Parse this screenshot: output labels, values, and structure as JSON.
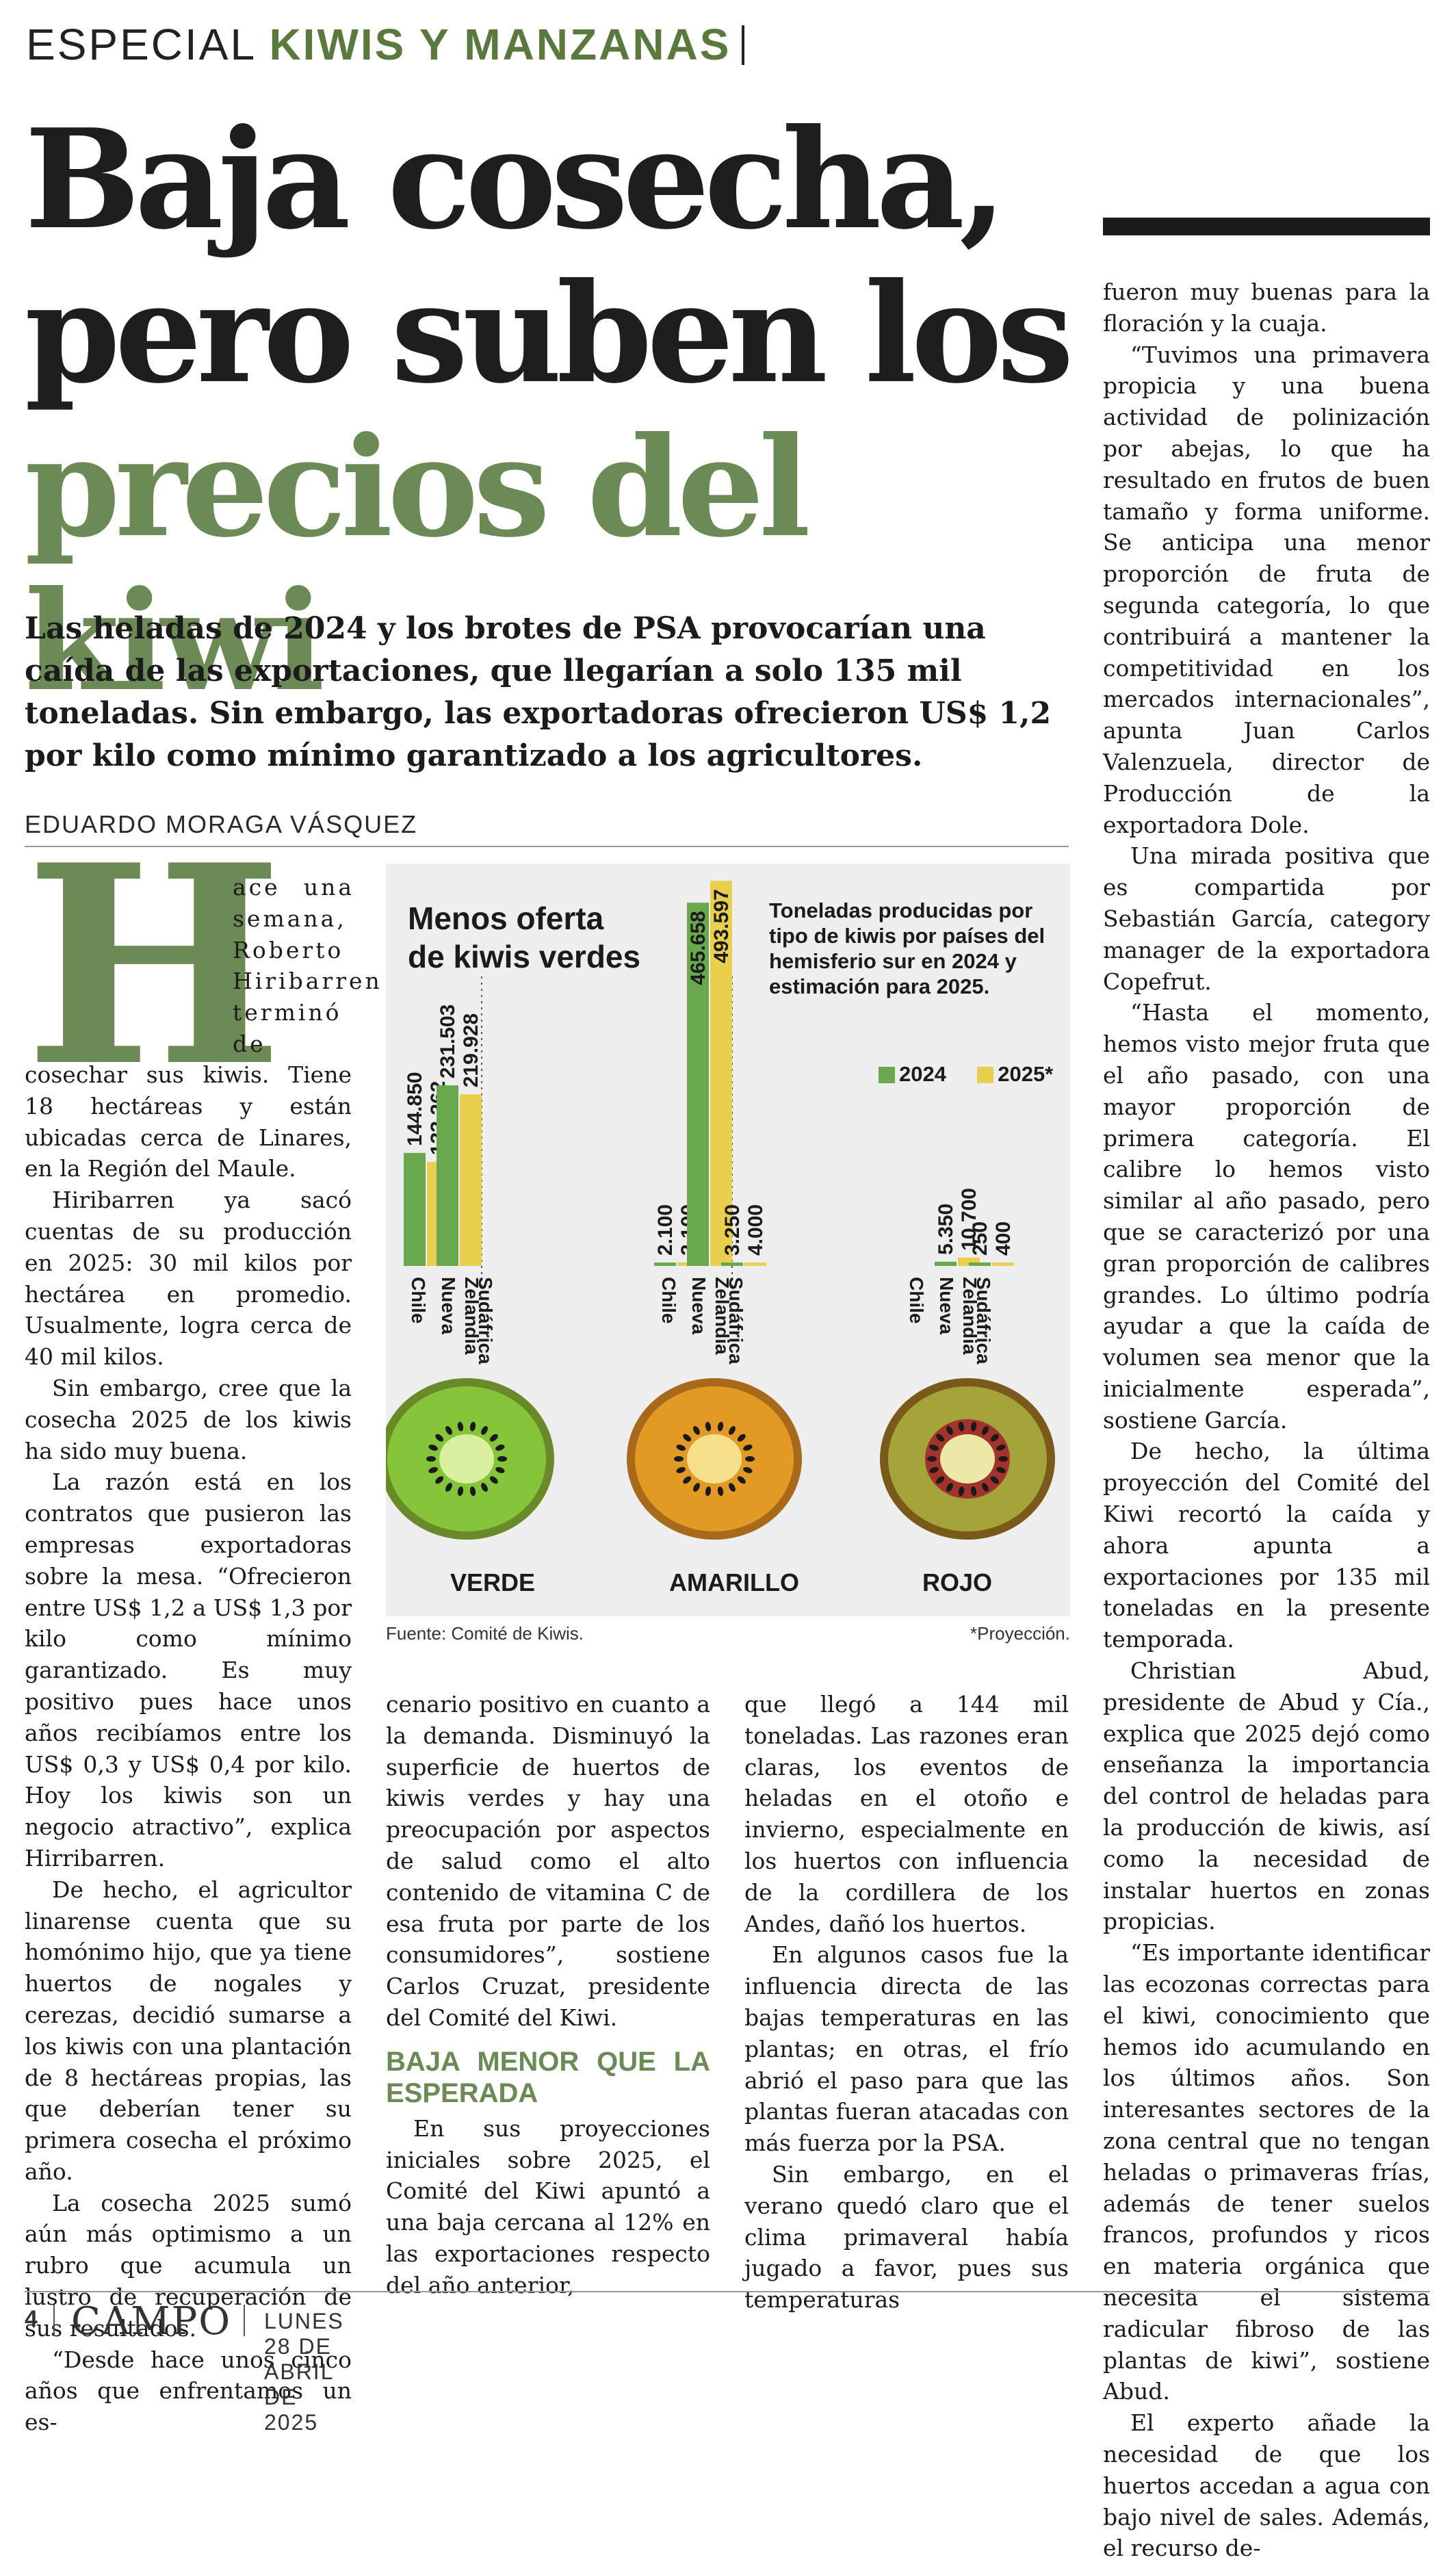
{
  "section": {
    "prefix": "ESPECIAL",
    "topic": "KIWIS Y MANZANAS"
  },
  "headline": {
    "line1": "Baja cosecha,",
    "line2": "pero suben los",
    "line3": "precios del kiwi"
  },
  "deck": "Las heladas de 2024 y los brotes de PSA provocarían una caída de las exportaciones, que llegarían a solo 135 mil toneladas. Sin embargo, las exportadoras ofrecieron US$ 1,2 por kilo como mínimo garantizado a los agricultores.",
  "byline": "EDUARDO MORAGA VÁSQUEZ",
  "article": {
    "dropcap": "H",
    "col1_top": "ace una semana, Roberto Hiribarren terminó de",
    "col1": [
      "cosechar sus kiwis. Tiene 18 hectáreas y están ubicadas cerca de Linares, en la Región del Maule.",
      "Hiribarren ya sacó cuentas de su producción en 2025: 30 mil kilos por hectárea en promedio. Usualmente, logra cerca de 40 mil kilos.",
      "Sin embargo, cree que la cosecha 2025 de los kiwis ha sido muy buena.",
      "La razón está en los contratos que pusieron las empresas exportadoras sobre la mesa. “Ofrecieron entre US$ 1,2 a US$ 1,3 por kilo como mínimo garantizado. Es muy positivo pues hace unos años recibíamos entre los US$ 0,3 y US$ 0,4 por kilo. Hoy los kiwis son un negocio atractivo”, explica Hirribarren.",
      "De hecho, el agricultor linarense cuenta que su homónimo hijo, que ya tiene huertos de nogales y cerezas, decidió sumarse a los kiwis con una plantación de 8 hectáreas propias, las que deberían tener su primera cosecha el próximo año.",
      "La cosecha 2025 sumó aún más optimismo a un rubro que acumula un lustro de recuperación de sus resultados.",
      "“Desde hace unos cinco años que enfrentamos un es-"
    ],
    "col2": [
      "cenario positivo en cuanto a la demanda. Disminuyó la superficie de huertos de kiwis verdes y hay una preocupación por aspectos de salud como el alto contenido de vitamina C de esa fruta por parte de los consumidores”, sostiene Carlos Cruzat, presidente del Comité del Kiwi."
    ],
    "subhead": "BAJA MENOR QUE LA ESPERADA",
    "col2_after": [
      "En sus proyecciones iniciales sobre 2025, el Comité del Kiwi apuntó a una baja cercana al 12% en las exportaciones respecto del año anterior,"
    ],
    "col3": [
      "que llegó a 144 mil toneladas. Las razones eran claras, los eventos de heladas en el otoño e invierno, especialmente en los huertos con influencia de la cordillera de los Andes, dañó los huertos.",
      "En algunos casos fue la influencia directa de las bajas temperaturas en las plantas; en otras, el frío abrió el paso para que las plantas fueran atacadas con más fuerza por la PSA.",
      "Sin embargo, en el verano quedó claro que el clima primaveral había jugado a favor, pues sus temperaturas"
    ],
    "col4": [
      "fueron muy buenas para la floración y la cuaja.",
      "“Tuvimos una primavera propicia y una buena actividad de polinización por abejas, lo que ha resultado en frutos de buen tamaño y forma uniforme. Se anticipa una menor proporción de fruta de segunda categoría, lo que contribuirá a mantener la competitividad en los mercados internacionales”, apunta Juan Carlos Valenzuela, director de Producción de la exportadora Dole.",
      "Una mirada positiva que es compartida por Sebastián García, category manager de la exportadora Copefrut.",
      "“Hasta el momento, hemos visto mejor fruta que el año pasado, con una mayor proporción de primera categoría. El calibre lo hemos visto similar al año pasado, pero que se caracterizó por una gran proporción de calibres grandes. Lo último podría ayudar a que la caída de volumen sea menor que la inicialmente esperada”, sostiene García.",
      "De hecho, la última proyección del Comité del Kiwi recortó la caída y ahora apunta a exportaciones por 135 mil toneladas en la presente temporada.",
      "Christian Abud, presidente de Abud y Cía., explica que 2025 dejó como enseñanza la importancia del control de heladas para la producción de kiwis, así como la necesidad de instalar huertos en zonas propicias.",
      "“Es importante identificar las ecozonas correctas para el kiwi, conocimiento que hemos ido acumulando en los últimos años. Son interesantes sectores de la zona central que no tengan heladas o primaveras frías, además de tener suelos francos, profundos y ricos en materia orgánica que necesita el sistema radicular fibroso de las plantas de kiwi”, sostiene Abud.",
      "El experto añade la necesidad de que los huertos accedan a agua con bajo nivel de sales. Además, el recurso de-"
    ]
  },
  "infographic": {
    "title_line1": "Menos oferta",
    "title_line2": "de kiwis verdes",
    "description": "Toneladas producidas por tipo de kiwis por países del hemisferio sur en 2024 y estimación para 2025.",
    "source": "Fuente: Comité de Kiwis.",
    "projection_note": "*Proyección."
  },
  "chart_data": {
    "type": "bar",
    "title": "Menos oferta de kiwis verdes",
    "subtitle": "Toneladas producidas por tipo de kiwis por países del hemisferio sur en 2024 y estimación para 2025.",
    "legend": [
      "2024",
      "2025*"
    ],
    "legend_position": "top-right",
    "colors": {
      "2024": "#6aa84f",
      "2025": "#e8cf4e"
    },
    "groups": [
      {
        "name": "VERDE",
        "categories": [
          "Chile",
          "Nueva Zelandia",
          "Sudáfrica"
        ],
        "series": [
          {
            "name": "2024",
            "values": [
              144850,
              231503,
              null
            ],
            "labels": [
              "144.850",
              "231.503",
              ""
            ]
          },
          {
            "name": "2025*",
            "values": [
              133262,
              219928,
              null
            ],
            "labels": [
              "133.262",
              "219.928",
              ""
            ]
          }
        ]
      },
      {
        "name": "AMARILLO",
        "categories": [
          "Chile",
          "Nueva Zelandia",
          "Sudáfrica"
        ],
        "series": [
          {
            "name": "2024",
            "values": [
              2100,
              465658,
              3250
            ],
            "labels": [
              "2.100",
              "465.658",
              "3.250"
            ]
          },
          {
            "name": "2025*",
            "values": [
              2100,
              493597,
              4000
            ],
            "labels": [
              "2.100",
              "493.597",
              "4.000"
            ]
          }
        ]
      },
      {
        "name": "ROJO",
        "categories": [
          "Chile",
          "Nueva Zelandia",
          "Sudáfrica"
        ],
        "series": [
          {
            "name": "2024",
            "values": [
              null,
              5350,
              250
            ],
            "labels": [
              "",
              "5.350",
              "250"
            ]
          },
          {
            "name": "2025*",
            "values": [
              null,
              10700,
              400
            ],
            "labels": [
              "",
              "10.700",
              "400"
            ]
          }
        ]
      }
    ]
  },
  "footer": {
    "page_number": "4",
    "section_name": "CAMPO",
    "date": "LUNES 28 DE ABRIL DE 2025"
  }
}
